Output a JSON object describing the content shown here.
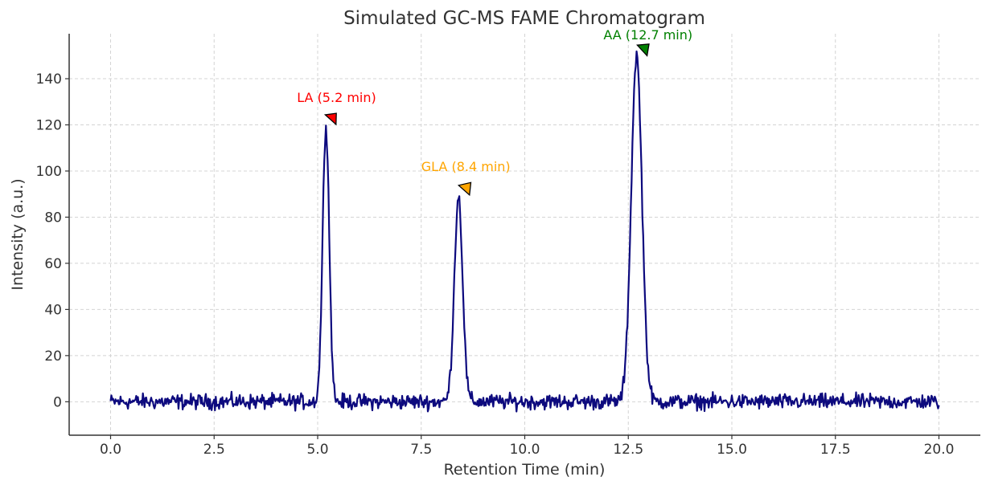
{
  "chart_data": {
    "type": "line",
    "title": "Simulated GC-MS FAME Chromatogram",
    "xlabel": "Retention Time (min)",
    "ylabel": "Intensity (a.u.)",
    "xlim": [
      -1.0,
      21.0
    ],
    "ylim": [
      -14.5,
      159.5
    ],
    "xticks": [
      "0.0",
      "2.5",
      "5.0",
      "7.5",
      "10.0",
      "12.5",
      "15.0",
      "17.5",
      "20.0"
    ],
    "yticks": [
      "0",
      "20",
      "40",
      "60",
      "80",
      "100",
      "120",
      "140"
    ],
    "grid": true,
    "line_color": "#0d0a7e",
    "series": [
      {
        "baseline_noise_amplitude": 2.5,
        "peaks": [
          {
            "center": 5.2,
            "height": 120,
            "sigma": 0.08
          },
          {
            "center": 8.4,
            "height": 89,
            "sigma": 0.1
          },
          {
            "center": 12.7,
            "height": 150,
            "sigma": 0.13
          }
        ],
        "x_range": [
          0.0,
          20.0
        ]
      }
    ],
    "annotations": [
      {
        "text": "LA (5.2 min)",
        "color": "#ff0000",
        "x": 5.2,
        "y": 120,
        "label_x": 4.5,
        "label_y": 130,
        "arrow_tip_x": 5.45,
        "arrow_tip_y": 125
      },
      {
        "text": "GLA (8.4 min)",
        "color": "#ffa500",
        "x": 8.4,
        "y": 89,
        "label_x": 7.5,
        "label_y": 100,
        "arrow_tip_x": 8.7,
        "arrow_tip_y": 95
      },
      {
        "text": "AA (12.7 min)",
        "color": "#008000",
        "x": 12.7,
        "y": 150,
        "label_x": 11.9,
        "label_y": 157,
        "arrow_tip_x": 13.0,
        "arrow_tip_y": 155
      }
    ]
  }
}
